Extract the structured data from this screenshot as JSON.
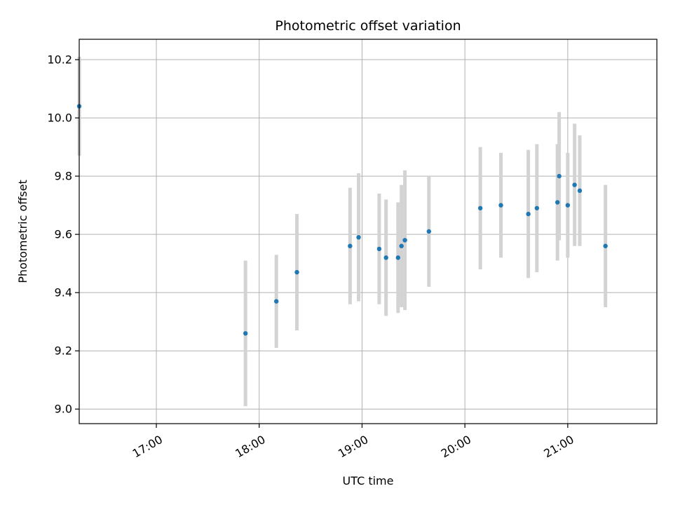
{
  "chart_data": {
    "type": "scatter",
    "title": "Photometric offset variation",
    "xlabel": "UTC time",
    "ylabel": "Photometric offset",
    "x_ticks": [
      "17:00",
      "18:00",
      "19:00",
      "20:00",
      "21:00"
    ],
    "y_ticks": [
      "9.0",
      "9.2",
      "9.4",
      "9.6",
      "9.8",
      "10.0",
      "10.2"
    ],
    "xlim": [
      "16:15",
      "21:52"
    ],
    "ylim": [
      8.95,
      10.27
    ],
    "grid": true,
    "marker_color": "#1f77b4",
    "errorbar_color": "#d3d3d3",
    "series": [
      {
        "points": [
          {
            "x": "16:15",
            "y": 10.04,
            "yerr": 0.17
          },
          {
            "x": "17:52",
            "y": 9.26,
            "yerr": 0.25
          },
          {
            "x": "18:10",
            "y": 9.37,
            "yerr": 0.16
          },
          {
            "x": "18:22",
            "y": 9.47,
            "yerr": 0.2
          },
          {
            "x": "18:53",
            "y": 9.56,
            "yerr": 0.2
          },
          {
            "x": "18:58",
            "y": 9.59,
            "yerr": 0.22
          },
          {
            "x": "19:10",
            "y": 9.55,
            "yerr": 0.19
          },
          {
            "x": "19:14",
            "y": 9.52,
            "yerr": 0.2
          },
          {
            "x": "19:21",
            "y": 9.52,
            "yerr": 0.19
          },
          {
            "x": "19:23",
            "y": 9.56,
            "yerr": 0.21
          },
          {
            "x": "19:25",
            "y": 9.58,
            "yerr": 0.24
          },
          {
            "x": "19:39",
            "y": 9.61,
            "yerr": 0.19
          },
          {
            "x": "20:09",
            "y": 9.69,
            "yerr": 0.21
          },
          {
            "x": "20:21",
            "y": 9.7,
            "yerr": 0.18
          },
          {
            "x": "20:37",
            "y": 9.67,
            "yerr": 0.22
          },
          {
            "x": "20:42",
            "y": 9.69,
            "yerr": 0.22
          },
          {
            "x": "20:54",
            "y": 9.71,
            "yerr": 0.2
          },
          {
            "x": "20:55",
            "y": 9.8,
            "yerr": 0.22
          },
          {
            "x": "21:00",
            "y": 9.7,
            "yerr": 0.18
          },
          {
            "x": "21:04",
            "y": 9.77,
            "yerr": 0.21
          },
          {
            "x": "21:07",
            "y": 9.75,
            "yerr": 0.19
          },
          {
            "x": "21:22",
            "y": 9.56,
            "yerr": 0.21
          }
        ]
      }
    ]
  }
}
